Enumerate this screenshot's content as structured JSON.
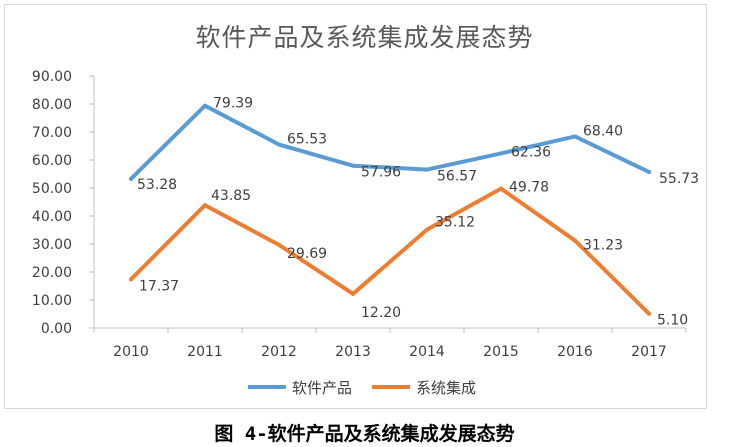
{
  "title": "软件产品及系统集成发展态势",
  "caption": "图 4-软件产品及系统集成发展态势",
  "chart_data": {
    "type": "line",
    "title": "软件产品及系统集成发展态势",
    "x": [
      "2010",
      "2011",
      "2012",
      "2013",
      "2014",
      "2015",
      "2016",
      "2017"
    ],
    "ylim": [
      0,
      90
    ],
    "yticks": [
      "0.00",
      "10.00",
      "20.00",
      "30.00",
      "40.00",
      "50.00",
      "60.00",
      "70.00",
      "80.00",
      "90.00"
    ],
    "grid": false,
    "legend_position": "bottom",
    "series": [
      {
        "name": "软件产品",
        "color": "#5b9bd5",
        "values": [
          53.28,
          79.39,
          65.53,
          57.96,
          56.57,
          62.36,
          68.4,
          55.73
        ],
        "labels": [
          "53.28",
          "79.39",
          "65.53",
          "57.96",
          "56.57",
          "62.36",
          "68.40",
          "55.73"
        ]
      },
      {
        "name": "系统集成",
        "color": "#ed7d31",
        "values": [
          17.37,
          43.85,
          29.69,
          12.2,
          35.12,
          49.78,
          31.23,
          5.1
        ],
        "labels": [
          "17.37",
          "43.85",
          "29.69",
          "12.20",
          "35.12",
          "49.78",
          "31.23",
          "5.10"
        ]
      }
    ]
  }
}
